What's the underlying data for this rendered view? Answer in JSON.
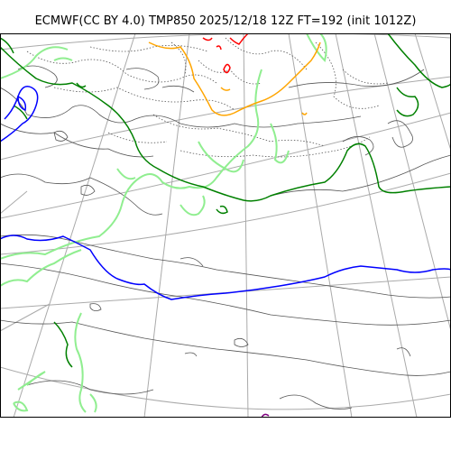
{
  "title": "ECMWF(CC BY 4.0) TMP850 2025/12/18 12Z FT=192 (init 1012Z)",
  "map": {
    "variable": "TMP850",
    "graticule_color": "#aaaaaa",
    "coastline_color": "#555555",
    "contour_colors": {
      "isotherm_0C": "#0000ff",
      "isotherm_minus_6C": "#008000",
      "isotherm_minus_light": "#90ee90",
      "isotherm_minus_24C": "#ffa500",
      "isotherm_minus_30C": "#ff0000",
      "isotherm_minus_36C": "#800080",
      "dotted_cold": "#555555"
    }
  }
}
